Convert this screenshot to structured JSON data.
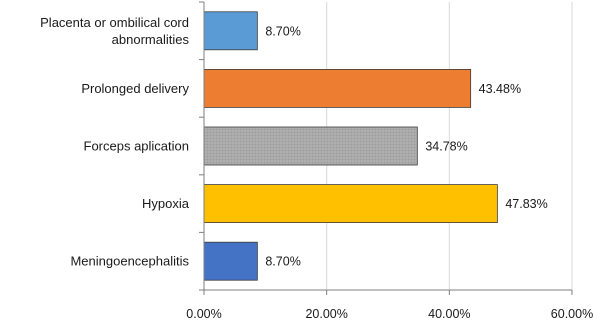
{
  "chart_data": {
    "type": "bar",
    "orientation": "horizontal",
    "categories": [
      [
        "Placenta or ombilical cord",
        "abnormalities"
      ],
      [
        "Prolonged delivery"
      ],
      [
        "Forceps aplication"
      ],
      [
        "Hypoxia"
      ],
      [
        "Meningoencephalitis"
      ]
    ],
    "values": [
      8.7,
      43.48,
      34.78,
      47.83,
      8.7
    ],
    "data_labels": [
      "8.70%",
      "43.48%",
      "34.78%",
      "47.83%",
      "8.70%"
    ],
    "colors": [
      "#5b9bd5",
      "#ed7d31",
      "#a6a6a6",
      "#ffc000",
      "#4472c4"
    ],
    "xlim": [
      0,
      60
    ],
    "x_ticks": [
      0,
      20,
      40,
      60
    ],
    "x_tick_labels": [
      "0.00%",
      "20.00%",
      "40.00%",
      "60.00%"
    ],
    "grid": "vertical",
    "legend": "none",
    "title": "",
    "xlabel": "",
    "ylabel": ""
  }
}
